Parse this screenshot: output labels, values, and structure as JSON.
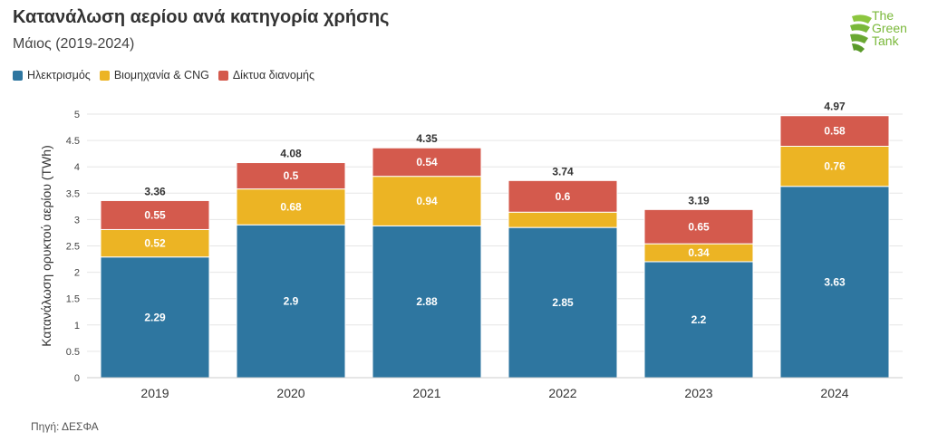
{
  "header": {
    "title": "Κατανάλωση αερίου ανά κατηγορία χρήσης",
    "subtitle": "Μάιος (2019-2024)"
  },
  "logo": {
    "line1": "The",
    "line2": "Green",
    "line3": "Tank"
  },
  "legend": [
    {
      "label": "Ηλεκτρισμός",
      "color": "#2e76a0"
    },
    {
      "label": "Βιομηχανία & CNG",
      "color": "#ecb424"
    },
    {
      "label": "Δίκτυα διανομής",
      "color": "#d45a4d"
    }
  ],
  "source": "Πηγή: ΔΕΣΦΑ",
  "chart_data": {
    "type": "bar",
    "stacked": true,
    "categories": [
      "2019",
      "2020",
      "2021",
      "2022",
      "2023",
      "2024"
    ],
    "ylabel": "Κατανάλωση ορυκτού αερίου (TWh)",
    "ylim": [
      0,
      5
    ],
    "yticks": [
      "0",
      "0.5",
      "1",
      "1.5",
      "2",
      "2.5",
      "3",
      "3.5",
      "4",
      "4.5",
      "5"
    ],
    "grid": true,
    "legend_position": "top-left",
    "series": [
      {
        "name": "Ηλεκτρισμός",
        "color": "#2e76a0",
        "values": [
          2.29,
          2.9,
          2.88,
          2.85,
          2.2,
          3.63
        ],
        "labels": [
          "2.29",
          "2.9",
          "2.88",
          "2.85",
          "2.2",
          "3.63"
        ]
      },
      {
        "name": "Βιομηχανία & CNG",
        "color": "#ecb424",
        "values": [
          0.52,
          0.68,
          0.94,
          0.29,
          0.34,
          0.76
        ],
        "labels": [
          "0.52",
          "0.68",
          "0.94",
          "",
          "0.34",
          "0.76"
        ]
      },
      {
        "name": "Δίκτυα διανομής",
        "color": "#d45a4d",
        "values": [
          0.55,
          0.5,
          0.54,
          0.6,
          0.65,
          0.58
        ],
        "labels": [
          "0.55",
          "0.5",
          "0.54",
          "0.6",
          "0.65",
          "0.58"
        ]
      }
    ],
    "totals": [
      "3.36",
      "4.08",
      "4.35",
      "3.74",
      "3.19",
      "4.97"
    ]
  }
}
